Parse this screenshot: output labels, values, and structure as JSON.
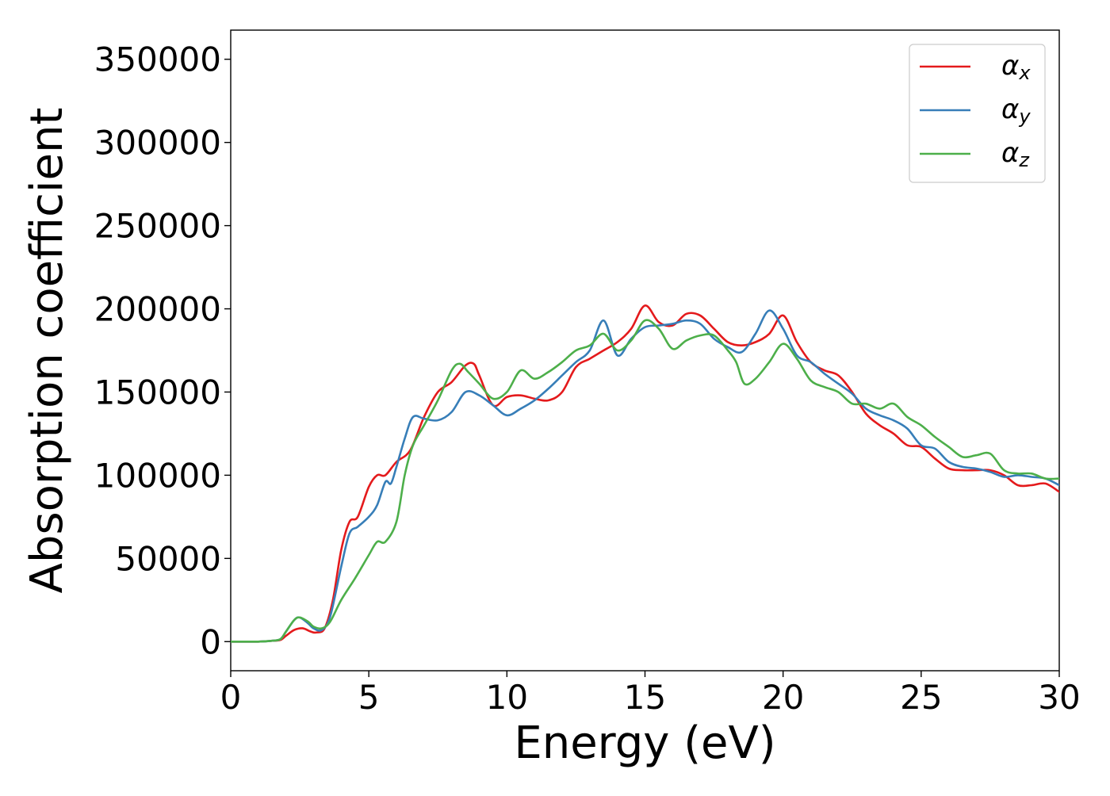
{
  "chart_data": {
    "type": "line",
    "title": "",
    "xlabel": "Energy (eV)",
    "ylabel": "Absorption coefficient",
    "xlim": [
      0,
      30
    ],
    "ylim": [
      -17500,
      367500
    ],
    "xticks": [
      0,
      5,
      10,
      15,
      20,
      25,
      30
    ],
    "yticks": [
      0,
      50000,
      100000,
      150000,
      200000,
      250000,
      300000,
      350000
    ],
    "xtick_labels": [
      "0",
      "5",
      "10",
      "15",
      "20",
      "25",
      "30"
    ],
    "ytick_labels": [
      "0",
      "50000",
      "100000",
      "150000",
      "200000",
      "250000",
      "300000",
      "350000"
    ],
    "grid": false,
    "legend_position": "top-right",
    "series": [
      {
        "name": "α_x",
        "label_main": "α",
        "label_sub": "x",
        "color": "#e41a1c",
        "x": [
          0,
          1,
          1.5,
          1.8,
          2,
          2.3,
          2.6,
          2.9,
          3.1,
          3.4,
          3.7,
          4,
          4.3,
          4.6,
          5,
          5.3,
          5.6,
          6,
          6.5,
          7,
          7.5,
          8,
          8.5,
          8.8,
          9,
          9.5,
          10,
          10.5,
          11,
          11.5,
          12,
          12.5,
          13,
          13.5,
          14,
          14.5,
          15,
          15.5,
          16,
          16.5,
          17,
          17.5,
          18,
          18.5,
          19,
          19.5,
          20,
          20.5,
          21,
          21.5,
          22,
          22.5,
          23,
          23.5,
          24,
          24.5,
          25,
          25.5,
          26,
          26.5,
          27,
          27.5,
          28,
          28.5,
          29,
          29.5,
          30
        ],
        "y": [
          0,
          0,
          500,
          1000,
          3500,
          7000,
          8000,
          6000,
          5500,
          8000,
          25000,
          55000,
          72000,
          75000,
          93000,
          100000,
          100000,
          108000,
          115000,
          135000,
          150000,
          156000,
          166000,
          167000,
          160000,
          142000,
          147000,
          148000,
          146000,
          145000,
          150000,
          165000,
          170000,
          175000,
          180000,
          188000,
          202000,
          192000,
          190000,
          197000,
          196000,
          188000,
          180000,
          178000,
          180000,
          185000,
          196000,
          180000,
          168000,
          163000,
          160000,
          150000,
          137000,
          130000,
          125000,
          118000,
          117000,
          110000,
          104000,
          103000,
          103000,
          103000,
          100000,
          94000,
          94000,
          95000,
          90000
        ]
      },
      {
        "name": "α_y",
        "label_main": "α",
        "label_sub": "y",
        "color": "#377eb8",
        "x": [
          0,
          1,
          1.5,
          1.8,
          2,
          2.3,
          2.5,
          2.8,
          3,
          3.3,
          3.6,
          4,
          4.3,
          4.6,
          5,
          5.3,
          5.6,
          5.8,
          6,
          6.3,
          6.6,
          7,
          7.5,
          8,
          8.5,
          9,
          9.5,
          10,
          10.5,
          11,
          11.5,
          12,
          12.5,
          13,
          13.5,
          14,
          14.5,
          15,
          15.5,
          16,
          16.5,
          17,
          17.5,
          18,
          18.5,
          19,
          19.5,
          20,
          20.5,
          21,
          21.5,
          22,
          22.5,
          23,
          23.5,
          24,
          24.5,
          25,
          25.5,
          26,
          26.5,
          27,
          27.5,
          28,
          28.5,
          29,
          29.5,
          30
        ],
        "y": [
          0,
          0,
          500,
          1500,
          6000,
          13000,
          14500,
          11000,
          8000,
          7000,
          15000,
          45000,
          65000,
          69000,
          75000,
          82000,
          96000,
          95000,
          105000,
          122000,
          135000,
          134000,
          133000,
          138000,
          150000,
          148000,
          142000,
          136000,
          140000,
          145000,
          152000,
          160000,
          168000,
          175000,
          193000,
          172000,
          182000,
          189000,
          190000,
          191000,
          193000,
          191000,
          182000,
          177000,
          174000,
          185000,
          199000,
          188000,
          172000,
          168000,
          161000,
          155000,
          149000,
          140000,
          136000,
          133000,
          128000,
          118000,
          116000,
          108000,
          105000,
          104000,
          102000,
          99000,
          100000,
          99000,
          98000,
          94000
        ]
      },
      {
        "name": "α_z",
        "label_main": "α",
        "label_sub": "z",
        "color": "#4daf4a",
        "x": [
          0,
          1,
          1.5,
          1.8,
          2,
          2.3,
          2.5,
          2.8,
          3,
          3.3,
          3.6,
          4,
          4.5,
          5,
          5.3,
          5.6,
          6,
          6.3,
          6.6,
          7,
          7.5,
          8,
          8.3,
          8.6,
          9,
          9.5,
          10,
          10.5,
          11,
          11.5,
          12,
          12.5,
          13,
          13.5,
          14,
          14.5,
          15,
          15.5,
          16,
          16.5,
          17,
          17.5,
          18,
          18.3,
          18.6,
          19,
          19.5,
          20,
          20.5,
          21,
          21.5,
          22,
          22.5,
          23,
          23.5,
          24,
          24.5,
          25,
          25.5,
          26,
          26.5,
          27,
          27.5,
          28,
          28.5,
          29,
          29.5,
          30
        ],
        "y": [
          0,
          0,
          500,
          1500,
          6000,
          13000,
          14500,
          12000,
          9000,
          8000,
          12000,
          25000,
          38000,
          52000,
          60000,
          60000,
          72000,
          100000,
          118000,
          130000,
          145000,
          163000,
          167000,
          162000,
          155000,
          146000,
          150000,
          163000,
          158000,
          162000,
          168000,
          175000,
          178000,
          185000,
          175000,
          181000,
          193000,
          188000,
          176000,
          181000,
          184000,
          184000,
          175000,
          168000,
          155000,
          158000,
          168000,
          179000,
          170000,
          157000,
          153000,
          150000,
          143000,
          143000,
          140000,
          143000,
          135000,
          130000,
          123000,
          117000,
          111000,
          112000,
          113000,
          103000,
          101000,
          101000,
          98000,
          98000
        ]
      }
    ]
  }
}
